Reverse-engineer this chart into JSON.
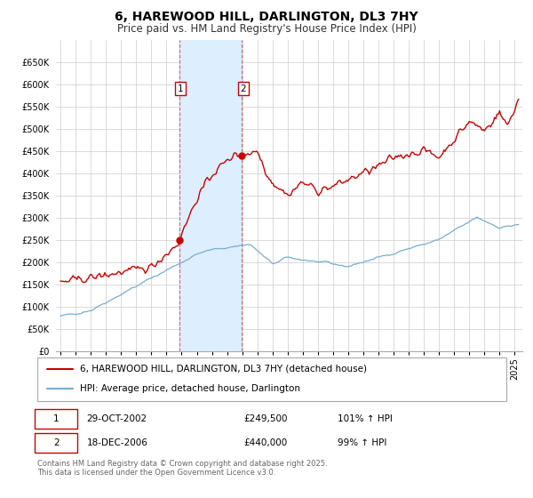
{
  "title": "6, HAREWOOD HILL, DARLINGTON, DL3 7HY",
  "subtitle": "Price paid vs. HM Land Registry's House Price Index (HPI)",
  "ylim": [
    0,
    700000
  ],
  "yticks": [
    0,
    50000,
    100000,
    150000,
    200000,
    250000,
    300000,
    350000,
    400000,
    450000,
    500000,
    550000,
    600000,
    650000
  ],
  "ytick_labels": [
    "£0",
    "£50K",
    "£100K",
    "£150K",
    "£200K",
    "£250K",
    "£300K",
    "£350K",
    "£400K",
    "£450K",
    "£500K",
    "£550K",
    "£600K",
    "£650K"
  ],
  "xlim_start": 1994.7,
  "xlim_end": 2025.5,
  "xtick_years": [
    1995,
    1996,
    1997,
    1998,
    1999,
    2000,
    2001,
    2002,
    2003,
    2004,
    2005,
    2006,
    2007,
    2008,
    2009,
    2010,
    2011,
    2012,
    2013,
    2014,
    2015,
    2016,
    2017,
    2018,
    2019,
    2020,
    2021,
    2022,
    2023,
    2024,
    2025
  ],
  "sale1_x": 2002.83,
  "sale1_y": 249500,
  "sale2_x": 2006.96,
  "sale2_y": 440000,
  "shade_start": 2002.83,
  "shade_end": 2006.96,
  "red_line_color": "#cc0000",
  "blue_line_color": "#7aadcf",
  "shade_color": "#ddeeff",
  "sale_dot_color": "#cc0000",
  "grid_color": "#cccccc",
  "background_color": "#ffffff",
  "legend_line1": "6, HAREWOOD HILL, DARLINGTON, DL3 7HY (detached house)",
  "legend_line2": "HPI: Average price, detached house, Darlington",
  "annotation1_date": "29-OCT-2002",
  "annotation1_price": "£249,500",
  "annotation1_hpi": "101% ↑ HPI",
  "annotation2_date": "18-DEC-2006",
  "annotation2_price": "£440,000",
  "annotation2_hpi": "99% ↑ HPI",
  "footer": "Contains HM Land Registry data © Crown copyright and database right 2025.\nThis data is licensed under the Open Government Licence v3.0.",
  "title_fontsize": 10,
  "subtitle_fontsize": 8.5,
  "tick_fontsize": 7,
  "legend_fontsize": 7.5,
  "annotation_fontsize": 7.5,
  "footer_fontsize": 6
}
